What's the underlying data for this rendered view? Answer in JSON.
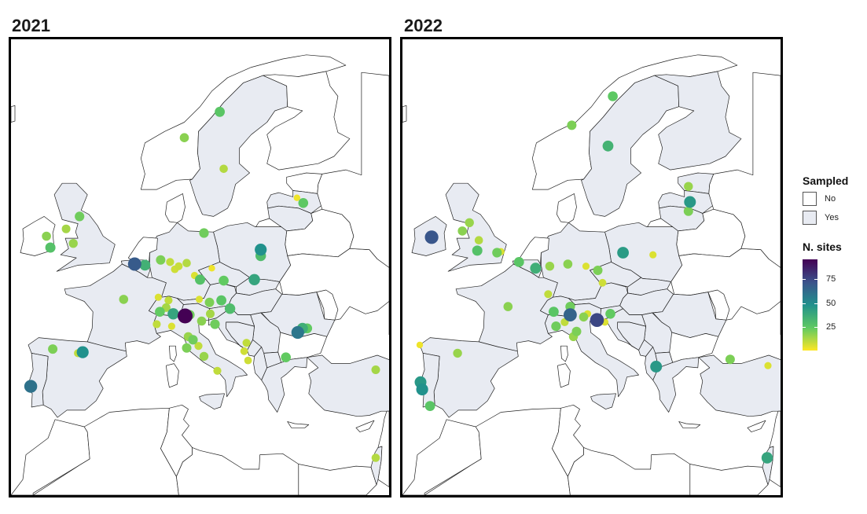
{
  "panels": [
    {
      "title": "2021"
    },
    {
      "title": "2022"
    }
  ],
  "legend": {
    "sampled_title": "Sampled",
    "sampled_keys": [
      {
        "label": "No",
        "fill": "#ffffff"
      },
      {
        "label": "Yes",
        "fill": "#e8ebf2"
      }
    ],
    "sites_title": "N. sites",
    "sites_range": [
      1,
      95
    ],
    "sites_ticks": [
      75,
      50,
      25
    ]
  },
  "colors": {
    "sampled_fill": "#e8ebf2",
    "unsampled_fill": "#ffffff",
    "border": "#222222",
    "scale": [
      "#440154",
      "#3b528b",
      "#21918c",
      "#5ec962",
      "#fde725"
    ]
  },
  "chart_data": {
    "type": "scatter",
    "projection": "lon/lat",
    "series": [
      {
        "name": "2021",
        "points": [
          {
            "lon": 10.5,
            "lat": 63.0,
            "n": 18
          },
          {
            "lon": 15.0,
            "lat": 65.5,
            "n": 26
          },
          {
            "lon": 15.5,
            "lat": 60.0,
            "n": 12
          },
          {
            "lon": 24.8,
            "lat": 57.2,
            "n": 3
          },
          {
            "lon": 25.6,
            "lat": 56.7,
            "n": 25
          },
          {
            "lon": -7.0,
            "lat": 53.5,
            "n": 18
          },
          {
            "lon": -4.5,
            "lat": 54.2,
            "n": 14
          },
          {
            "lon": -2.8,
            "lat": 55.4,
            "n": 22
          },
          {
            "lon": -6.5,
            "lat": 52.4,
            "n": 28
          },
          {
            "lon": -3.6,
            "lat": 52.8,
            "n": 16
          },
          {
            "lon": 4.2,
            "lat": 50.8,
            "n": 68
          },
          {
            "lon": 5.5,
            "lat": 50.7,
            "n": 35
          },
          {
            "lon": 7.5,
            "lat": 51.2,
            "n": 20
          },
          {
            "lon": 8.7,
            "lat": 51.0,
            "n": 10
          },
          {
            "lon": 9.3,
            "lat": 50.3,
            "n": 8
          },
          {
            "lon": 9.8,
            "lat": 50.6,
            "n": 9
          },
          {
            "lon": 10.8,
            "lat": 50.9,
            "n": 12
          },
          {
            "lon": 13.0,
            "lat": 53.8,
            "n": 22
          },
          {
            "lon": 20.2,
            "lat": 52.2,
            "n": 48
          },
          {
            "lon": 20.2,
            "lat": 51.6,
            "n": 30
          },
          {
            "lon": 19.4,
            "lat": 49.3,
            "n": 40
          },
          {
            "lon": 11.8,
            "lat": 49.7,
            "n": 6
          },
          {
            "lon": 12.5,
            "lat": 49.3,
            "n": 28
          },
          {
            "lon": 14.0,
            "lat": 50.4,
            "n": 3
          },
          {
            "lon": 15.5,
            "lat": 49.2,
            "n": 24
          },
          {
            "lon": 2.8,
            "lat": 47.4,
            "n": 18
          },
          {
            "lon": 7.2,
            "lat": 47.6,
            "n": 6
          },
          {
            "lon": 8.5,
            "lat": 47.3,
            "n": 10
          },
          {
            "lon": 8.2,
            "lat": 46.6,
            "n": 14
          },
          {
            "lon": 7.4,
            "lat": 46.2,
            "n": 24
          },
          {
            "lon": 9.1,
            "lat": 46.0,
            "n": 40
          },
          {
            "lon": 10.6,
            "lat": 45.8,
            "n": 95
          },
          {
            "lon": 11.2,
            "lat": 45.9,
            "n": 22
          },
          {
            "lon": 12.4,
            "lat": 47.4,
            "n": 6
          },
          {
            "lon": 13.7,
            "lat": 47.1,
            "n": 20
          },
          {
            "lon": 15.2,
            "lat": 47.3,
            "n": 26
          },
          {
            "lon": 16.3,
            "lat": 46.5,
            "n": 30
          },
          {
            "lon": 13.8,
            "lat": 46.0,
            "n": 14
          },
          {
            "lon": 12.7,
            "lat": 45.3,
            "n": 18
          },
          {
            "lon": 7.0,
            "lat": 45.0,
            "n": 10
          },
          {
            "lon": 8.9,
            "lat": 44.8,
            "n": 6
          },
          {
            "lon": 14.4,
            "lat": 45.0,
            "n": 22
          },
          {
            "lon": 11.0,
            "lat": 43.8,
            "n": 16
          },
          {
            "lon": 11.6,
            "lat": 43.5,
            "n": 22
          },
          {
            "lon": 12.3,
            "lat": 42.9,
            "n": 10
          },
          {
            "lon": 10.8,
            "lat": 42.7,
            "n": 20
          },
          {
            "lon": 13.0,
            "lat": 41.9,
            "n": 16
          },
          {
            "lon": 14.7,
            "lat": 40.5,
            "n": 10
          },
          {
            "lon": 24.9,
            "lat": 44.2,
            "n": 58
          },
          {
            "lon": 25.5,
            "lat": 44.6,
            "n": 36
          },
          {
            "lon": 26.1,
            "lat": 44.6,
            "n": 24
          },
          {
            "lon": 18.4,
            "lat": 43.2,
            "n": 10
          },
          {
            "lon": 18.1,
            "lat": 42.4,
            "n": 8
          },
          {
            "lon": 18.6,
            "lat": 41.5,
            "n": 8
          },
          {
            "lon": 23.4,
            "lat": 41.8,
            "n": 24
          },
          {
            "lon": 34.8,
            "lat": 40.6,
            "n": 14
          },
          {
            "lon": -6.2,
            "lat": 42.6,
            "n": 20
          },
          {
            "lon": -3.0,
            "lat": 42.2,
            "n": 10
          },
          {
            "lon": -2.4,
            "lat": 42.3,
            "n": 48
          },
          {
            "lon": -9.0,
            "lat": 39.0,
            "n": 60
          },
          {
            "lon": 34.8,
            "lat": 32.1,
            "n": 12
          }
        ]
      },
      {
        "name": "2022",
        "points": [
          {
            "lon": 15.2,
            "lat": 67.0,
            "n": 25
          },
          {
            "lon": 10.0,
            "lat": 64.2,
            "n": 20
          },
          {
            "lon": 14.6,
            "lat": 62.2,
            "n": 34
          },
          {
            "lon": 24.8,
            "lat": 58.3,
            "n": 16
          },
          {
            "lon": 25.0,
            "lat": 56.8,
            "n": 45
          },
          {
            "lon": 24.8,
            "lat": 55.9,
            "n": 20
          },
          {
            "lon": -7.8,
            "lat": 53.4,
            "n": 70
          },
          {
            "lon": -3.0,
            "lat": 54.8,
            "n": 16
          },
          {
            "lon": -3.9,
            "lat": 54.0,
            "n": 18
          },
          {
            "lon": -1.8,
            "lat": 53.1,
            "n": 12
          },
          {
            "lon": -2.0,
            "lat": 52.1,
            "n": 28
          },
          {
            "lon": 0.5,
            "lat": 51.9,
            "n": 22
          },
          {
            "lon": 1.0,
            "lat": 52.0,
            "n": 6
          },
          {
            "lon": 3.3,
            "lat": 51.0,
            "n": 26
          },
          {
            "lon": 5.4,
            "lat": 50.4,
            "n": 36
          },
          {
            "lon": 7.2,
            "lat": 50.6,
            "n": 16
          },
          {
            "lon": 9.5,
            "lat": 50.8,
            "n": 18
          },
          {
            "lon": 11.8,
            "lat": 50.6,
            "n": 6
          },
          {
            "lon": 13.3,
            "lat": 50.2,
            "n": 20
          },
          {
            "lon": 16.5,
            "lat": 51.9,
            "n": 44
          },
          {
            "lon": 20.3,
            "lat": 51.7,
            "n": 6
          },
          {
            "lon": 13.9,
            "lat": 49.0,
            "n": 8
          },
          {
            "lon": 1.9,
            "lat": 46.7,
            "n": 18
          },
          {
            "lon": 7.0,
            "lat": 47.9,
            "n": 10
          },
          {
            "lon": 7.7,
            "lat": 46.2,
            "n": 26
          },
          {
            "lon": 9.8,
            "lat": 46.7,
            "n": 22
          },
          {
            "lon": 9.8,
            "lat": 45.9,
            "n": 65
          },
          {
            "lon": 11.5,
            "lat": 45.7,
            "n": 18
          },
          {
            "lon": 12.0,
            "lat": 46.0,
            "n": 6
          },
          {
            "lon": 13.2,
            "lat": 45.4,
            "n": 75
          },
          {
            "lon": 14.2,
            "lat": 45.2,
            "n": 6
          },
          {
            "lon": 14.9,
            "lat": 46.0,
            "n": 24
          },
          {
            "lon": 8.0,
            "lat": 44.8,
            "n": 22
          },
          {
            "lon": 9.1,
            "lat": 45.2,
            "n": 10
          },
          {
            "lon": 10.6,
            "lat": 44.3,
            "n": 20
          },
          {
            "lon": 10.2,
            "lat": 43.8,
            "n": 16
          },
          {
            "lon": 20.7,
            "lat": 40.9,
            "n": 45
          },
          {
            "lon": 30.1,
            "lat": 41.6,
            "n": 20
          },
          {
            "lon": 34.9,
            "lat": 41.0,
            "n": 6
          },
          {
            "lon": -4.5,
            "lat": 42.2,
            "n": 16
          },
          {
            "lon": -9.3,
            "lat": 43.0,
            "n": 3
          },
          {
            "lon": -9.2,
            "lat": 39.4,
            "n": 45
          },
          {
            "lon": -9.0,
            "lat": 38.7,
            "n": 48
          },
          {
            "lon": -8.0,
            "lat": 37.1,
            "n": 26
          },
          {
            "lon": 34.8,
            "lat": 32.1,
            "n": 40
          }
        ]
      }
    ]
  }
}
